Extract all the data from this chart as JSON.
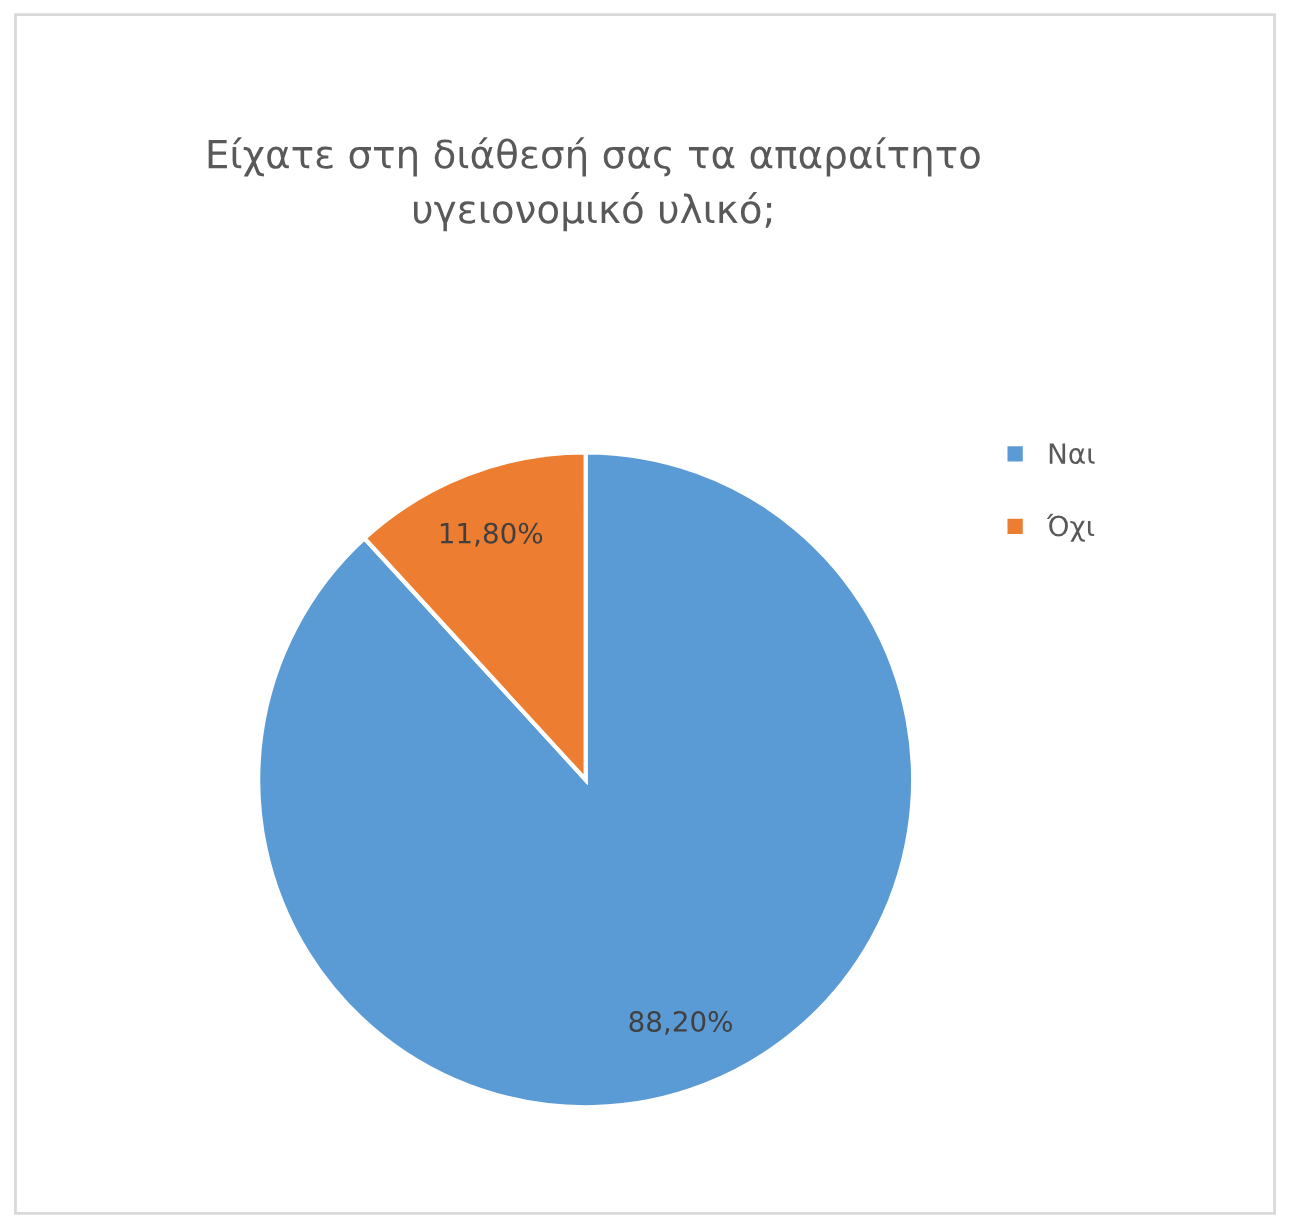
{
  "chart_data": {
    "type": "pie",
    "title": "Είχατε στη διάθεσή σας τα απαραίτητο\nυγειονομικό υλικό;",
    "categories": [
      "Ναι",
      "Όχι"
    ],
    "values": [
      88.2,
      11.8
    ],
    "colors": [
      "#5b9bd5",
      "#ed7d31"
    ],
    "value_labels": [
      "88,20%",
      "11,80%"
    ],
    "legend": "right"
  }
}
